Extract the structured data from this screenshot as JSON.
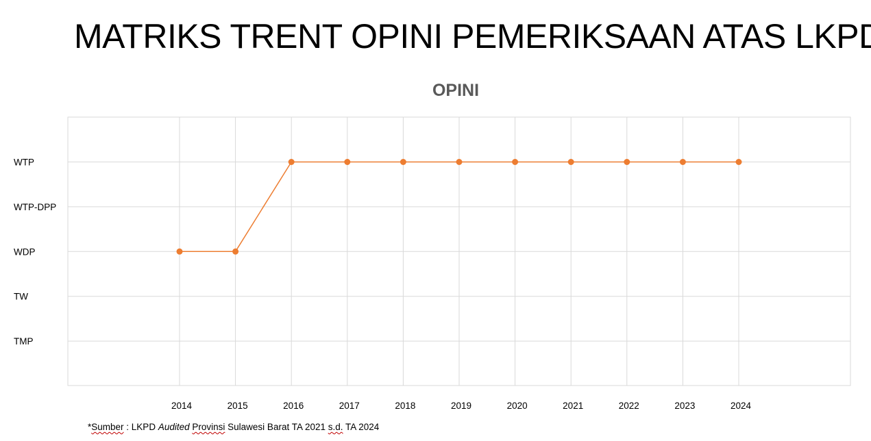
{
  "slide": {
    "title": "MATRIKS TRENT OPINI PEMERIKSAAN ATAS LKPD"
  },
  "source_note": {
    "prefix": "*",
    "sumber": "Sumber",
    "sep": " : LKPD ",
    "audited": "Audited",
    "space": " ",
    "provinsi": "Provinsi",
    "middle": " Sulawesi Barat TA 2021 ",
    "sd": "s.d.",
    "end": " TA 2024"
  },
  "colors": {
    "series": "#ED7D31",
    "grid": "#D9D9D9",
    "title": "#595959"
  },
  "chart_data": {
    "type": "line",
    "title": "OPINI",
    "categories": [
      "2014",
      "2015",
      "2016",
      "2017",
      "2018",
      "2019",
      "2020",
      "2021",
      "2022",
      "2023",
      "2024"
    ],
    "y_categories": [
      "WTP",
      "WTP-DPP",
      "WDP",
      "TW",
      "TMP"
    ],
    "series": [
      {
        "values": [
          "WDP",
          "WDP",
          "WTP",
          "WTP",
          "WTP",
          "WTP",
          "WTP",
          "WTP",
          "WTP",
          "WTP",
          "WTP"
        ]
      }
    ],
    "grid": true,
    "legend": "none"
  }
}
